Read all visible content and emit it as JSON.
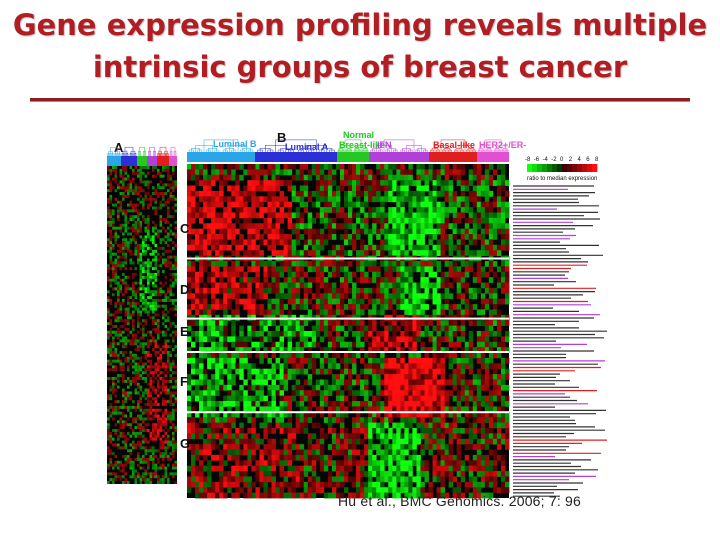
{
  "slide": {
    "title_line1": "Gene expression profiling reveals multiple",
    "title_line2": "intrinsic groups of breast cancer",
    "citation": "Hu et al., BMC Genomics. 2006; 7: 96"
  },
  "figure": {
    "panel_letters": [
      "A",
      "B",
      "C",
      "D",
      "E",
      "F",
      "G"
    ],
    "subtypes": [
      {
        "name": "Luminal B",
        "color": "#2aa6e8"
      },
      {
        "name": "Luminal A",
        "color": "#2b2fd6"
      },
      {
        "name": "Normal Breast-like",
        "color": "#23c823"
      },
      {
        "name": "IFN",
        "color": "#b040d8"
      },
      {
        "name": "Basal-like",
        "color": "#e01e1e"
      },
      {
        "name": "HER2+/ER-",
        "color": "#e050d0"
      }
    ],
    "label_luminal_b": "Luminal B",
    "label_luminal_a": "Luminal A",
    "label_normal": "Normal",
    "label_breast_like": "Breast-like",
    "label_ifn": "IFN",
    "label_basal": "Basal-like",
    "label_her2": "HER2+/ER-",
    "scale_ticks": [
      "-8",
      "-6",
      "-4",
      "-2",
      "0",
      "2",
      "4",
      "6",
      "8"
    ],
    "scale_caption": "ratio to median expression",
    "colors": {
      "up": "#ff1a1a",
      "down": "#1aff1a",
      "zero": "#000000",
      "title": "#b01e23"
    }
  }
}
